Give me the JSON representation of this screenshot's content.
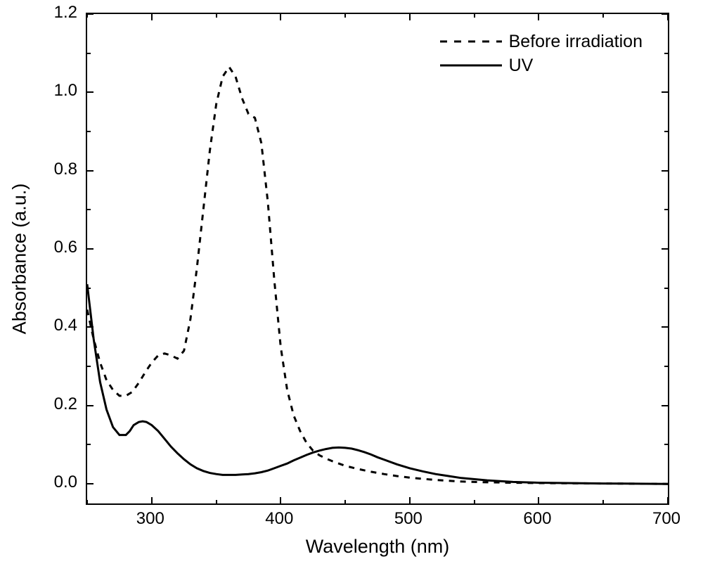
{
  "chart": {
    "type": "line",
    "background_color": "#ffffff",
    "axis_color": "#000000",
    "axis_linewidth": 2,
    "xlabel": "Wavelength (nm)",
    "ylabel": "Absorbance (a.u.)",
    "label_fontsize": 27,
    "tick_fontsize": 24,
    "xlim": [
      250,
      700
    ],
    "ylim": [
      -0.05,
      1.2
    ],
    "xtick_step": 100,
    "xticks": [
      300,
      400,
      500,
      600,
      700
    ],
    "xtick_minor_step": 50,
    "ytick_step": 0.2,
    "yticks": [
      0.0,
      0.2,
      0.4,
      0.6,
      0.8,
      1.0,
      1.2
    ],
    "ytick_minor_step": 0.1,
    "grid": false,
    "legend": {
      "position": "top-right",
      "fontsize": 25,
      "items": [
        {
          "label": "Before irradiation",
          "style": "dash",
          "color": "#000000",
          "linewidth": 3
        },
        {
          "label": "UV",
          "style": "solid",
          "color": "#000000",
          "linewidth": 3
        }
      ]
    },
    "series": [
      {
        "name": "Before irradiation",
        "color": "#000000",
        "linewidth": 3,
        "dash": "8,8",
        "x": [
          250,
          255,
          260,
          265,
          270,
          275,
          280,
          285,
          290,
          295,
          300,
          305,
          310,
          315,
          320,
          325,
          330,
          335,
          340,
          345,
          350,
          355,
          360,
          365,
          370,
          375,
          380,
          385,
          390,
          395,
          400,
          405,
          410,
          415,
          420,
          425,
          430,
          435,
          440,
          445,
          450,
          460,
          470,
          480,
          490,
          500,
          520,
          540,
          560,
          580,
          600,
          650,
          700
        ],
        "y": [
          0.445,
          0.37,
          0.31,
          0.265,
          0.24,
          0.225,
          0.225,
          0.235,
          0.258,
          0.285,
          0.31,
          0.328,
          0.333,
          0.328,
          0.32,
          0.34,
          0.42,
          0.55,
          0.7,
          0.85,
          0.97,
          1.04,
          1.065,
          1.04,
          0.985,
          0.945,
          0.935,
          0.87,
          0.72,
          0.52,
          0.35,
          0.24,
          0.175,
          0.135,
          0.105,
          0.085,
          0.073,
          0.065,
          0.058,
          0.052,
          0.046,
          0.038,
          0.031,
          0.025,
          0.02,
          0.016,
          0.01,
          0.006,
          0.004,
          0.003,
          0.002,
          0.001,
          0.0
        ]
      },
      {
        "name": "UV",
        "color": "#000000",
        "linewidth": 3,
        "dash": null,
        "x": [
          250,
          255,
          260,
          265,
          270,
          275,
          280,
          283,
          286,
          290,
          293,
          296,
          300,
          305,
          310,
          315,
          320,
          325,
          330,
          335,
          340,
          345,
          350,
          355,
          360,
          365,
          370,
          375,
          380,
          385,
          390,
          395,
          400,
          405,
          410,
          415,
          420,
          425,
          430,
          435,
          440,
          445,
          450,
          455,
          460,
          465,
          470,
          475,
          480,
          490,
          500,
          510,
          520,
          530,
          540,
          560,
          580,
          600,
          650,
          700
        ],
        "y": [
          0.51,
          0.37,
          0.26,
          0.19,
          0.145,
          0.125,
          0.125,
          0.135,
          0.15,
          0.158,
          0.16,
          0.158,
          0.15,
          0.135,
          0.115,
          0.095,
          0.078,
          0.063,
          0.05,
          0.04,
          0.033,
          0.028,
          0.025,
          0.023,
          0.023,
          0.023,
          0.024,
          0.025,
          0.027,
          0.03,
          0.034,
          0.04,
          0.046,
          0.052,
          0.06,
          0.067,
          0.074,
          0.08,
          0.085,
          0.089,
          0.092,
          0.093,
          0.092,
          0.09,
          0.086,
          0.081,
          0.075,
          0.068,
          0.062,
          0.05,
          0.04,
          0.032,
          0.025,
          0.02,
          0.015,
          0.009,
          0.005,
          0.003,
          0.001,
          0.0
        ]
      }
    ]
  }
}
